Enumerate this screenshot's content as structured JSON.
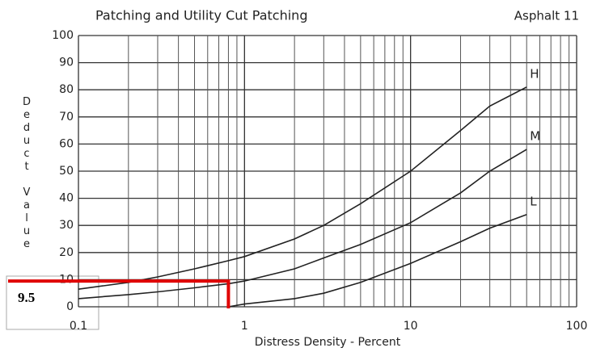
{
  "chart_data": {
    "type": "line",
    "title": "Patching and Utility Cut Patching",
    "subtitle": "Asphalt 11",
    "x_label": "Distress Density - Percent",
    "y_label": "Deduct Value",
    "x": [
      0.1,
      0.2,
      0.3,
      0.5,
      0.8,
      1,
      2,
      3,
      5,
      10,
      20,
      30,
      50
    ],
    "series": [
      {
        "name": "H",
        "color": "#222222",
        "values": [
          6.5,
          9,
          11,
          14,
          17,
          18.5,
          25,
          30,
          38,
          50,
          65,
          74,
          81
        ]
      },
      {
        "name": "M",
        "color": "#222222",
        "values": [
          3,
          4.5,
          5.5,
          7,
          8.5,
          9.5,
          14,
          18,
          23,
          31,
          42,
          50,
          58
        ]
      },
      {
        "name": "L",
        "color": "#222222",
        "values": [
          null,
          null,
          null,
          null,
          0,
          1,
          3,
          5,
          9,
          16,
          24,
          29,
          34
        ]
      }
    ],
    "xlim": [
      0.1,
      100
    ],
    "ylim": [
      0,
      100
    ],
    "xticks": [
      0.1,
      1,
      10,
      100
    ],
    "yticks": [
      0,
      10,
      20,
      30,
      40,
      50,
      60,
      70,
      80,
      90,
      100
    ],
    "log_x": true,
    "grid": true,
    "annotation": {
      "label": "9.5",
      "y": 9.5,
      "x": 0.8,
      "color": "#e00000"
    }
  }
}
